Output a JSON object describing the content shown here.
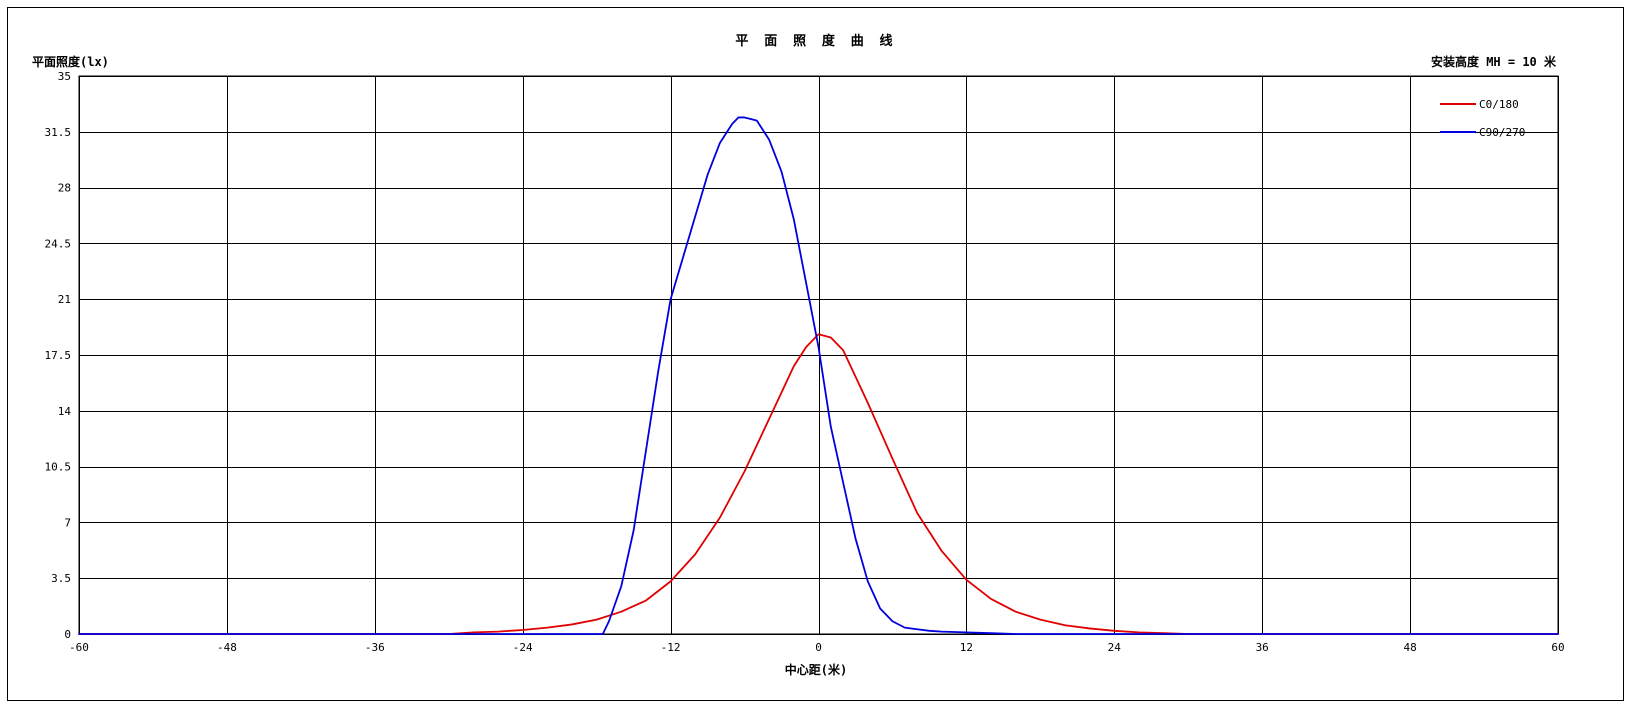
{
  "chart_data": {
    "type": "line",
    "title": "平 面 照 度 曲 线",
    "ylabel": "平面照度(lx)",
    "xlabel": "中心距(米)",
    "annotation": "安装高度 MH = 10 米",
    "xlim": [
      -60,
      60
    ],
    "ylim": [
      0,
      35
    ],
    "xticks": [
      -60,
      -48,
      -36,
      -24,
      -12,
      0,
      12,
      24,
      36,
      48,
      60
    ],
    "yticks": [
      0,
      3.5,
      7,
      10.5,
      14,
      17.5,
      21,
      24.5,
      28,
      31.5,
      35
    ],
    "grid": true,
    "legend_position": "top-right",
    "series": [
      {
        "name": "C0/180",
        "color": "#e00000",
        "x": [
          -60,
          -30,
          -28,
          -26,
          -24,
          -22,
          -20,
          -18,
          -16,
          -14,
          -12,
          -10,
          -8,
          -6,
          -4,
          -2,
          -1,
          0,
          1,
          2,
          4,
          6,
          8,
          10,
          12,
          14,
          16,
          18,
          20,
          22,
          24,
          26,
          28,
          30,
          60
        ],
        "y": [
          0,
          0,
          0.1,
          0.15,
          0.25,
          0.4,
          0.6,
          0.9,
          1.4,
          2.1,
          3.3,
          5.0,
          7.3,
          10.2,
          13.5,
          16.8,
          18.0,
          18.8,
          18.6,
          17.8,
          14.5,
          11.0,
          7.6,
          5.2,
          3.4,
          2.2,
          1.4,
          0.9,
          0.55,
          0.35,
          0.2,
          0.1,
          0.05,
          0,
          0
        ]
      },
      {
        "name": "C90/270",
        "color": "#0000e0",
        "x": [
          -60,
          -17.5,
          -17,
          -16,
          -15,
          -14,
          -13,
          -12,
          -11,
          -10,
          -9,
          -8,
          -7,
          -6.5,
          -6,
          -5.5,
          -5,
          -4,
          -3,
          -2,
          -1,
          0,
          1,
          2,
          3,
          4,
          5,
          6,
          7,
          8,
          9,
          10,
          12,
          14,
          16,
          60
        ],
        "y": [
          0,
          0,
          0.8,
          3.0,
          6.5,
          11.5,
          16.5,
          21.0,
          23.6,
          26.2,
          28.8,
          30.8,
          32.0,
          32.4,
          32.4,
          32.3,
          32.2,
          31.0,
          29.0,
          26.0,
          22.0,
          18.0,
          13.0,
          9.5,
          6.0,
          3.3,
          1.6,
          0.8,
          0.4,
          0.3,
          0.2,
          0.15,
          0.1,
          0.05,
          0,
          0
        ]
      }
    ]
  }
}
